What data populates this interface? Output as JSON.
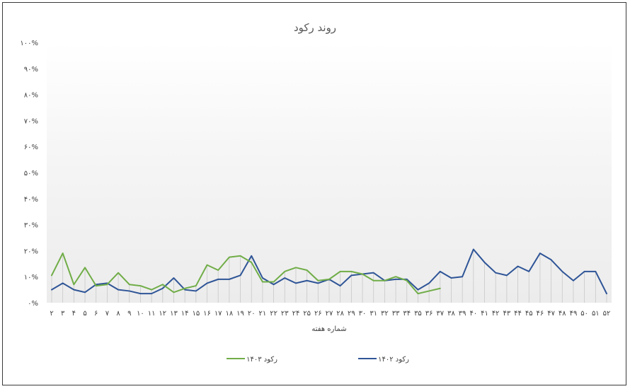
{
  "chart_data": {
    "type": "line",
    "title": "روند رکود",
    "xlabel": "شماره هفته",
    "ylabel": "",
    "x_tick_labels": [
      "۲",
      "۳",
      "۴",
      "۵",
      "۶",
      "۷",
      "۸",
      "۹",
      "۱۰",
      "۱۱",
      "۱۲",
      "۱۳",
      "۱۴",
      "۱۵",
      "۱۶",
      "۱۷",
      "۱۸",
      "۱۹",
      "۲۰",
      "۲۱",
      "۲۲",
      "۲۳",
      "۲۴",
      "۲۵",
      "۲۶",
      "۲۷",
      "۲۸",
      "۲۹",
      "۳۰",
      "۳۱",
      "۳۲",
      "۳۳",
      "۳۴",
      "۳۵",
      "۳۶",
      "۳۷",
      "۳۸",
      "۳۹",
      "۴۰",
      "۴۱",
      "۴۲",
      "۴۳",
      "۴۴",
      "۴۵",
      "۴۶",
      "۴۷",
      "۴۸",
      "۴۹",
      "۵۰",
      "۵۱",
      "۵۲"
    ],
    "x": [
      2,
      3,
      4,
      5,
      6,
      7,
      8,
      9,
      10,
      11,
      12,
      13,
      14,
      15,
      16,
      17,
      18,
      19,
      20,
      21,
      22,
      23,
      24,
      25,
      26,
      27,
      28,
      29,
      30,
      31,
      32,
      33,
      34,
      35,
      36,
      37,
      38,
      39,
      40,
      41,
      42,
      43,
      44,
      45,
      46,
      47,
      48,
      49,
      50,
      51,
      52
    ],
    "y_tick_labels": [
      "۰%",
      "۱۰%",
      "۲۰%",
      "۳۰%",
      "۴۰%",
      "۵۰%",
      "۶۰%",
      "۷۰%",
      "۸۰%",
      "۹۰%",
      "۱۰۰%"
    ],
    "ylim": [
      0,
      100
    ],
    "y_unit": "%",
    "grid": "vertical drop lines",
    "legend_position": "bottom",
    "series": [
      {
        "name": "رکود ۱۴۰۳",
        "color": "#70AD47",
        "values": [
          10.5,
          19,
          7,
          13.5,
          6.5,
          7,
          11.5,
          7,
          6.5,
          5,
          7,
          4,
          5.5,
          6.5,
          14.5,
          12.5,
          17.5,
          18,
          15.5,
          8,
          8,
          12,
          13.5,
          12.5,
          8.5,
          9,
          12,
          12,
          11,
          8.5,
          8.5,
          10,
          8.5,
          3.5,
          4.5,
          5.5,
          null,
          null,
          null,
          null,
          null,
          null,
          null,
          null,
          null,
          null,
          null,
          null,
          null,
          null,
          null
        ]
      },
      {
        "name": "رکود ۱۴۰۲",
        "color": "#2F5597",
        "values": [
          5,
          7.5,
          5,
          4,
          7,
          7.5,
          5,
          4.5,
          3.5,
          3.5,
          5.5,
          9.5,
          5,
          4.5,
          7.5,
          9,
          9,
          10.5,
          18,
          9.5,
          7,
          9.5,
          7.5,
          8.5,
          7.5,
          9,
          6.5,
          10.5,
          11,
          11.5,
          8.5,
          9,
          9,
          5,
          7.5,
          12,
          9.5,
          10,
          20.5,
          15.5,
          11.5,
          10.5,
          14,
          12,
          19,
          16.5,
          12,
          8.5,
          12,
          12,
          3.5
        ]
      }
    ]
  }
}
